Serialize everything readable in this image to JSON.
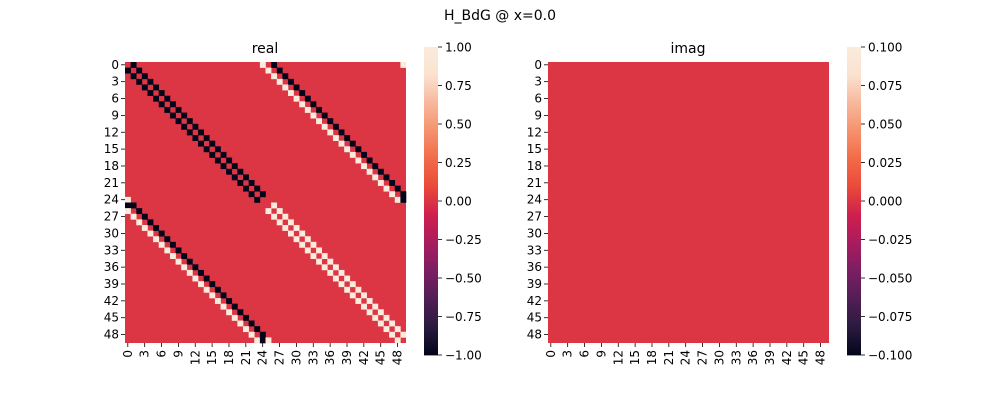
{
  "figure": {
    "title": "H_BdG @ x=0.0"
  },
  "colors": {
    "zero": "#cf1f4e",
    "plus_one": "#fbe8dc",
    "minus_one": "#03051a",
    "colormap": [
      "#03051a",
      "#2a1b3e",
      "#511e55",
      "#7b1e62",
      "#a81c5f",
      "#cf1f4e",
      "#e94a3a",
      "#f26b49",
      "#f5916c",
      "#f7b89c",
      "#fae2cf",
      "#faebdd"
    ]
  },
  "chart_data": [
    {
      "type": "heatmap",
      "title": "real",
      "size": 50,
      "x_tick_labels": [
        "0",
        "3",
        "6",
        "9",
        "12",
        "15",
        "18",
        "21",
        "24",
        "27",
        "30",
        "33",
        "36",
        "39",
        "42",
        "45",
        "48"
      ],
      "y_tick_labels": [
        "0",
        "3",
        "6",
        "9",
        "12",
        "15",
        "18",
        "21",
        "24",
        "27",
        "30",
        "33",
        "36",
        "39",
        "42",
        "45",
        "48"
      ],
      "default_value": 0,
      "diagonals": [
        {
          "offset": 1,
          "value": -1,
          "rows": [
            0,
            23
          ]
        },
        {
          "offset": -1,
          "value": -1,
          "rows": [
            1,
            24
          ]
        },
        {
          "offset": 1,
          "value": 1,
          "rows": [
            25,
            48
          ]
        },
        {
          "offset": -1,
          "value": 1,
          "rows": [
            26,
            49
          ]
        },
        {
          "offset": 26,
          "value": -1,
          "rows": [
            0,
            23
          ]
        },
        {
          "offset": 24,
          "value": 1,
          "rows": [
            1,
            24
          ]
        },
        {
          "offset": -24,
          "value": -1,
          "rows": [
            25,
            48
          ]
        },
        {
          "offset": -26,
          "value": 1,
          "rows": [
            26,
            49
          ]
        }
      ],
      "cells": [
        {
          "row": 0,
          "col": 24,
          "value": 1
        },
        {
          "row": 0,
          "col": 49,
          "value": 1
        },
        {
          "row": 24,
          "col": 0,
          "value": 1
        },
        {
          "row": 24,
          "col": 49,
          "value": -1
        },
        {
          "row": 25,
          "col": 0,
          "value": -1
        },
        {
          "row": 49,
          "col": 24,
          "value": -1
        },
        {
          "row": 49,
          "col": 25,
          "value": 1
        }
      ],
      "colorbar": {
        "vmin": -1.0,
        "vmax": 1.0,
        "ticks": [
          -1.0,
          -0.75,
          -0.5,
          -0.25,
          0.0,
          0.25,
          0.5,
          0.75,
          1.0
        ],
        "tick_labels": [
          "−1.00",
          "−0.75",
          "−0.50",
          "−0.25",
          "0.00",
          "0.25",
          "0.50",
          "0.75",
          "1.00"
        ]
      }
    },
    {
      "type": "heatmap",
      "title": "imag",
      "size": 50,
      "x_tick_labels": [
        "0",
        "3",
        "6",
        "9",
        "12",
        "15",
        "18",
        "21",
        "24",
        "27",
        "30",
        "33",
        "36",
        "39",
        "42",
        "45",
        "48"
      ],
      "y_tick_labels": [
        "0",
        "3",
        "6",
        "9",
        "12",
        "15",
        "18",
        "21",
        "24",
        "27",
        "30",
        "33",
        "36",
        "39",
        "42",
        "45",
        "48"
      ],
      "default_value": 0,
      "diagonals": [],
      "cells": [],
      "colorbar": {
        "vmin": -0.1,
        "vmax": 0.1,
        "ticks": [
          -0.1,
          -0.075,
          -0.05,
          -0.025,
          0.0,
          0.025,
          0.05,
          0.075,
          0.1
        ],
        "tick_labels": [
          "−0.100",
          "−0.075",
          "−0.050",
          "−0.025",
          "0.000",
          "0.025",
          "0.050",
          "0.075",
          "0.100"
        ]
      }
    }
  ]
}
